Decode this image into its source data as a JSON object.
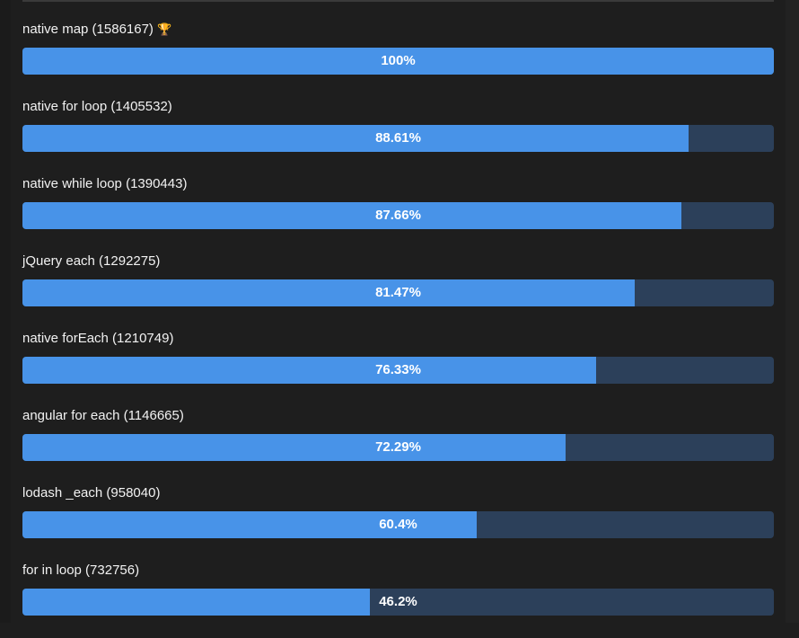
{
  "results": [
    {
      "name": "native map (1586167)",
      "percent": 100,
      "percent_label": "100%",
      "winner": true,
      "icon": "trophy-icon"
    },
    {
      "name": "native for loop (1405532)",
      "percent": 88.61,
      "percent_label": "88.61%"
    },
    {
      "name": "native while loop (1390443)",
      "percent": 87.66,
      "percent_label": "87.66%"
    },
    {
      "name": "jQuery each (1292275)",
      "percent": 81.47,
      "percent_label": "81.47%"
    },
    {
      "name": "native forEach (1210749)",
      "percent": 76.33,
      "percent_label": "76.33%"
    },
    {
      "name": "angular for each (1146665)",
      "percent": 72.29,
      "percent_label": "72.29%"
    },
    {
      "name": "lodash _each (958040)",
      "percent": 60.4,
      "percent_label": "60.4%"
    },
    {
      "name": "for in loop (732756)",
      "percent": 46.2,
      "percent_label": "46.2%"
    }
  ],
  "colors": {
    "fill": "#4893e8",
    "track": "#2c405a",
    "background": "#1e1e1e"
  }
}
